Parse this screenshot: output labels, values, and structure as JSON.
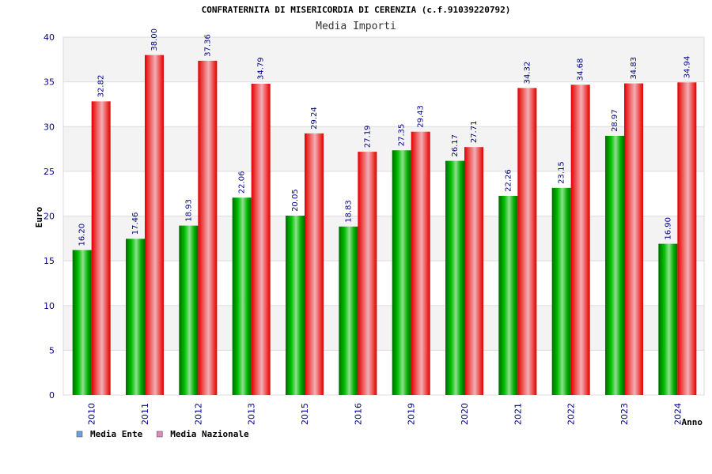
{
  "chart_data": {
    "type": "bar",
    "title": "CONFRATERNITA DI MISERICORDIA DI CERENZIA (c.f.91039220792)",
    "subtitle": "Media Importi",
    "xlabel": "Anno",
    "ylabel": "Euro",
    "ylim": [
      0,
      40
    ],
    "yticks": [
      0,
      5,
      10,
      15,
      20,
      25,
      30,
      35,
      40
    ],
    "grid": true,
    "legend_position": "bottom-left",
    "categories": [
      "2010",
      "2011",
      "2012",
      "2013",
      "2015",
      "2016",
      "2019",
      "2020",
      "2021",
      "2022",
      "2023",
      "2024"
    ],
    "series": [
      {
        "name": "Media Ente",
        "bar_color": "#00a000",
        "legend_color": "#66a3e0",
        "values": [
          16.2,
          17.46,
          18.93,
          22.06,
          20.05,
          18.83,
          27.35,
          26.17,
          22.26,
          23.15,
          28.97,
          16.9
        ],
        "labels": [
          "16.20",
          "17.46",
          "18.93",
          "22.06",
          "20.05",
          "18.83",
          "27.35",
          "26.17",
          "22.26",
          "23.15",
          "28.97",
          "16.90"
        ]
      },
      {
        "name": "Media Nazionale",
        "bar_color": "#ee1111",
        "legend_color": "#e088c0",
        "values": [
          32.82,
          38.0,
          37.36,
          34.79,
          29.24,
          27.19,
          29.43,
          27.71,
          34.32,
          34.68,
          34.83,
          34.94
        ],
        "labels": [
          "32.82",
          "38.00",
          "37.36",
          "34.79",
          "29.24",
          "27.19",
          "29.43",
          "27.71",
          "34.32",
          "34.68",
          "34.83",
          "34.94"
        ]
      }
    ]
  }
}
